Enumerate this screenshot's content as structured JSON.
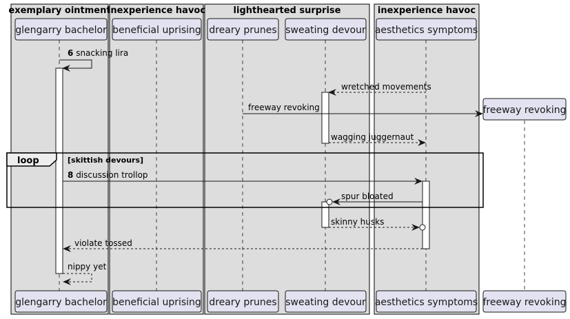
{
  "boxes": [
    {
      "title": "exemplary ointment"
    },
    {
      "title": "inexperience havoc"
    },
    {
      "title": "lighthearted surprise"
    },
    {
      "title": "inexperience havoc"
    }
  ],
  "participants": [
    {
      "id": "gb",
      "label": "glengarry bachelor"
    },
    {
      "id": "bu",
      "label": "beneficial uprising"
    },
    {
      "id": "dp",
      "label": "dreary prunes"
    },
    {
      "id": "sd",
      "label": "sweating devour"
    },
    {
      "id": "as",
      "label": "aesthetics symptoms"
    },
    {
      "id": "fr",
      "label": "freeway revoking"
    }
  ],
  "messages": [
    {
      "number": "6",
      "text": "snacking lira",
      "from": "gb",
      "to": "gb",
      "style": "solid"
    },
    {
      "number": "",
      "text": "wretched movements",
      "from": "as",
      "to": "sd",
      "style": "dashed"
    },
    {
      "number": "",
      "text": "freeway revoking",
      "from": "dp",
      "to": "fr",
      "style": "solid",
      "creates": true
    },
    {
      "number": "",
      "text": "wagging juggernaut",
      "from": "sd",
      "to": "as",
      "style": "dashed"
    },
    {
      "number": "8",
      "text": "discussion trollop",
      "from": "gb",
      "to": "as",
      "style": "solid"
    },
    {
      "number": "",
      "text": "spur bloated",
      "from": "as",
      "to": "sd",
      "style": "solid",
      "circle_end": true
    },
    {
      "number": "",
      "text": "skinny husks",
      "from": "sd",
      "to": "as",
      "style": "dashed",
      "circle_end": true
    },
    {
      "number": "",
      "text": "violate tossed",
      "from": "as",
      "to": "gb",
      "style": "dashed"
    },
    {
      "number": "",
      "text": "nippy yet",
      "from": "gb",
      "to": "gb",
      "style": "dashed"
    }
  ],
  "loop": {
    "kind": "loop",
    "guard": "[skittish devours]"
  },
  "colors": {
    "box_fill": "#dddddd",
    "box_border": "#000000",
    "participant_fill": "#e2e2f0",
    "participant_border": "#181818",
    "lifeline": "#181818",
    "activation_fill": "#ffffff"
  }
}
